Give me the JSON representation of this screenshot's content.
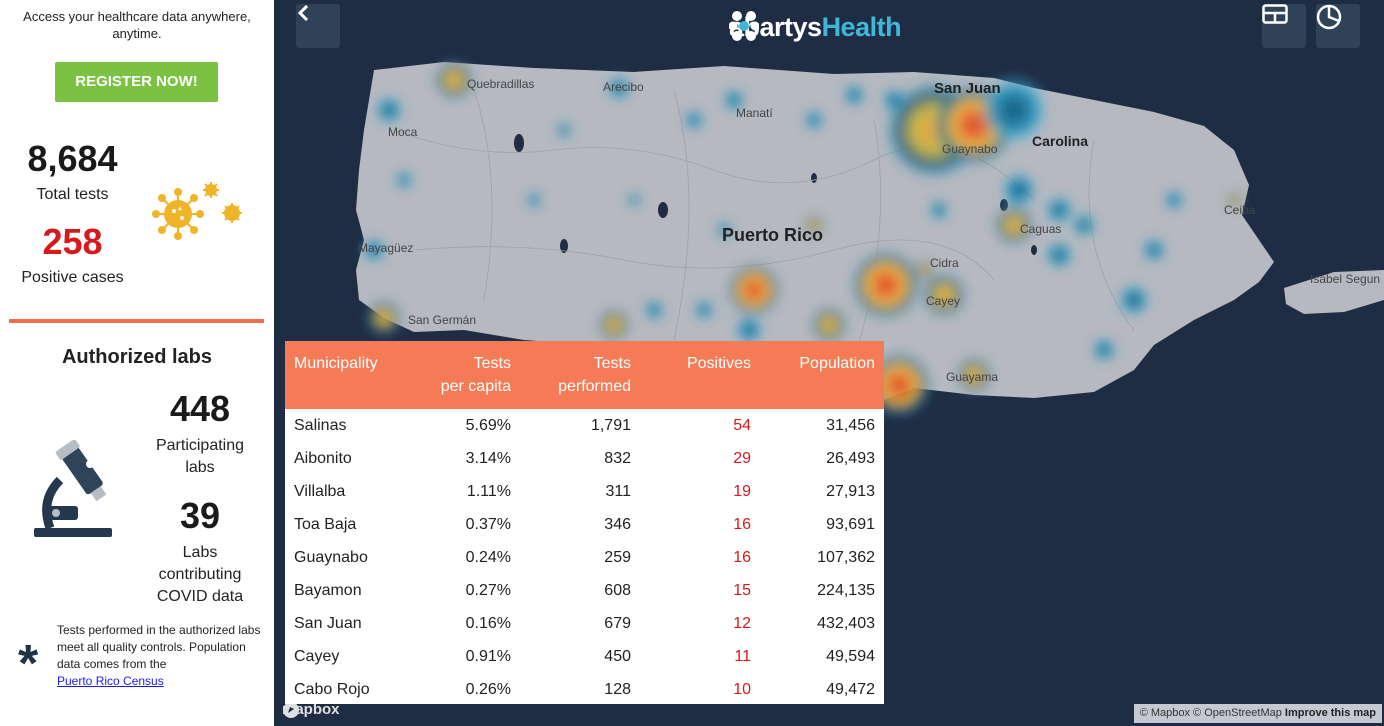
{
  "sidebar": {
    "tagline": "Access your healthcare data anywhere, anytime.",
    "register_label": "REGISTER NOW!",
    "total_tests": "8,684",
    "total_tests_label": "Total tests",
    "positive_cases": "258",
    "positive_cases_label": "Positive cases",
    "labs_title": "Authorized labs",
    "participating_labs": "448",
    "participating_labs_label": "Participating labs",
    "contributing_labs": "39",
    "contributing_labs_label": "Labs contributing COVID data",
    "footnote_text": "Tests performed in the authorized labs meet all quality controls. Population data comes from the",
    "footnote_link": "Puerto Rico Census",
    "asterisk": "*"
  },
  "header": {
    "brand_prefix": "abartys",
    "brand_accent": "Health"
  },
  "map": {
    "labels": {
      "quebradillas": "Quebradillas",
      "arecibo": "Arecibo",
      "manati": "Manatí",
      "san_juan": "San Juan",
      "carolina": "Carolina",
      "guaynabo": "Guaynabo",
      "moca": "Moca",
      "puerto_rico": "Puerto Rico",
      "mayaguez": "Mayagüez",
      "san_german": "San Germán",
      "caguas": "Caguas",
      "cidra": "Cidra",
      "cayey": "Cayey",
      "guayama": "Guayama",
      "ceiba": "Ceiba",
      "isabel_segunda": "Isabel Segun"
    },
    "attribution_text": "© Mapbox © OpenStreetMap",
    "attribution_link": "Improve this map",
    "mapbox_logo": "mapbox"
  },
  "table": {
    "headers": [
      [
        "Municipality",
        ""
      ],
      [
        "Tests",
        "per capita"
      ],
      [
        "Tests",
        "performed"
      ],
      [
        "Positives",
        ""
      ],
      [
        "Population",
        ""
      ]
    ],
    "rows": [
      [
        "Salinas",
        "5.69%",
        "1,791",
        "54",
        "31,456"
      ],
      [
        "Aibonito",
        "3.14%",
        "832",
        "29",
        "26,493"
      ],
      [
        "Villalba",
        "1.11%",
        "311",
        "19",
        "27,913"
      ],
      [
        "Toa Baja",
        "0.37%",
        "346",
        "16",
        "93,691"
      ],
      [
        "Guaynabo",
        "0.24%",
        "259",
        "16",
        "107,362"
      ],
      [
        "Bayamon",
        "0.27%",
        "608",
        "15",
        "224,135"
      ],
      [
        "San Juan",
        "0.16%",
        "679",
        "12",
        "432,403"
      ],
      [
        "Cayey",
        "0.91%",
        "450",
        "11",
        "49,594"
      ],
      [
        "Cabo Rojo",
        "0.26%",
        "128",
        "10",
        "49,472"
      ]
    ]
  },
  "colors": {
    "accent": "#f47b56",
    "register": "#7cc242",
    "positive": "#d7191c",
    "map_bg": "#1e2d44",
    "land": "#b6b9bf",
    "brand_accent": "#3fb8d8"
  }
}
